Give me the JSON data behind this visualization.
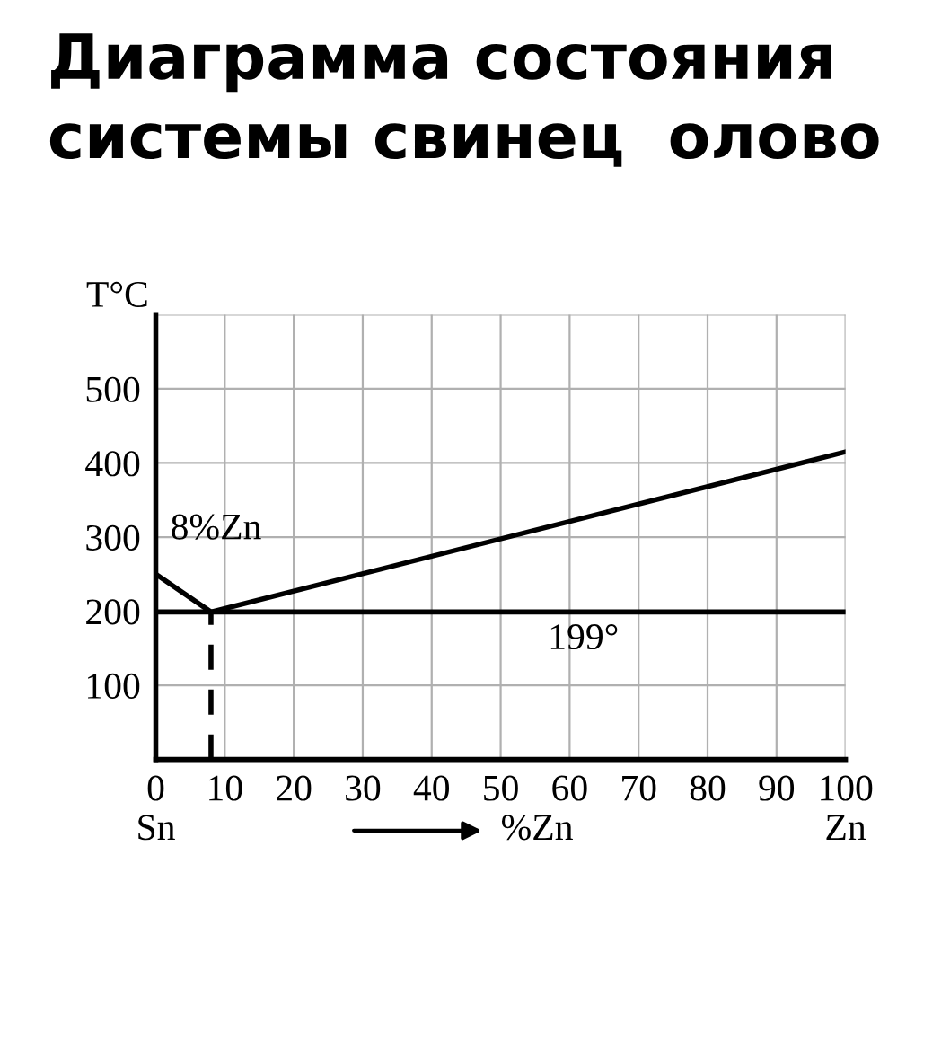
{
  "chart_data": {
    "type": "line",
    "title": "Диаграмма состояния\nсистемы свинец  олово",
    "ylabel": "T°C",
    "xlabel": "%Zn",
    "series": [
      {
        "color": "#000000",
        "x": [
          0,
          8,
          100
        ],
        "values": [
          250,
          199,
          415
        ]
      },
      {
        "color": "#000000",
        "x": [
          8,
          8
        ],
        "values": [
          0,
          199
        ],
        "line_style": "dashed"
      }
    ],
    "ref_lines": [
      {
        "axis": "y",
        "value": 199,
        "label": "199°",
        "color": "#000000"
      }
    ],
    "annotations": [
      {
        "text": "8%Zn",
        "x": 8,
        "y": 199
      },
      "Sn",
      "Zn"
    ],
    "xlim": [
      0,
      100
    ],
    "xticks": [
      0,
      10,
      20,
      30,
      40,
      50,
      60,
      70,
      80,
      90,
      100
    ],
    "ylim": [
      0,
      600
    ],
    "yticks": [
      100,
      200,
      300,
      400,
      500,
      {
        "value": 600,
        "label": null
      }
    ],
    "grid": true,
    "legend": false,
    "marker": "none",
    "line_style": "solid"
  }
}
